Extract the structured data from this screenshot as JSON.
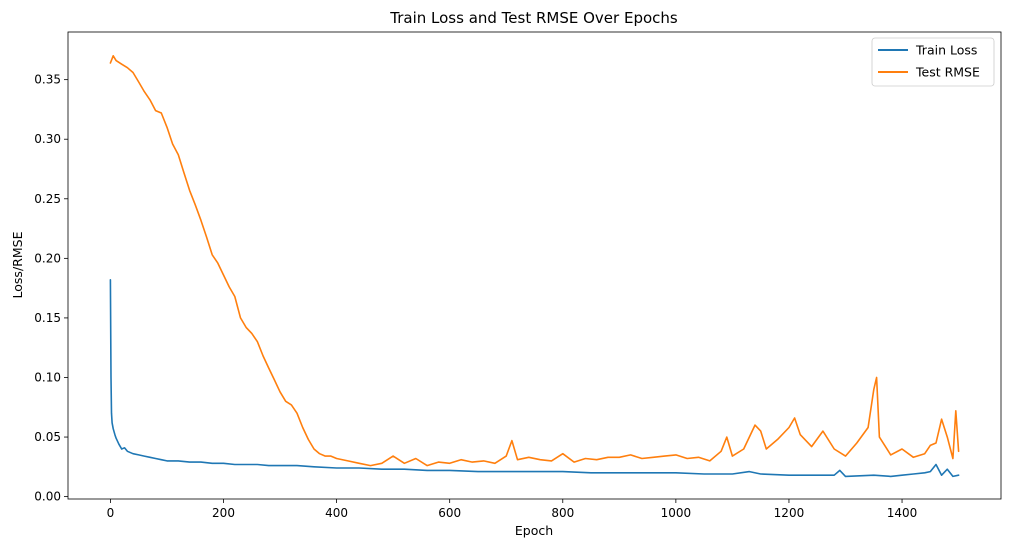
{
  "chart_data": {
    "type": "line",
    "title": "Train Loss and Test RMSE Over Epochs",
    "xlabel": "Epoch",
    "ylabel": "Loss/RMSE",
    "xlim": [
      -75,
      1575
    ],
    "ylim": [
      -0.002,
      0.39
    ],
    "x_ticks": [
      {
        "value": 0,
        "label": "0"
      },
      {
        "value": 200,
        "label": "200"
      },
      {
        "value": 400,
        "label": "400"
      },
      {
        "value": 600,
        "label": "600"
      },
      {
        "value": 800,
        "label": "800"
      },
      {
        "value": 1000,
        "label": "1000"
      },
      {
        "value": 1200,
        "label": "1200"
      },
      {
        "value": 1400,
        "label": "1400"
      }
    ],
    "y_ticks": [
      {
        "value": 0.0,
        "label": "0.00"
      },
      {
        "value": 0.05,
        "label": "0.05"
      },
      {
        "value": 0.1,
        "label": "0.10"
      },
      {
        "value": 0.15,
        "label": "0.15"
      },
      {
        "value": 0.2,
        "label": "0.20"
      },
      {
        "value": 0.25,
        "label": "0.25"
      },
      {
        "value": 0.3,
        "label": "0.30"
      },
      {
        "value": 0.35,
        "label": "0.35"
      }
    ],
    "grid": false,
    "legend_position": "top-right",
    "series": [
      {
        "name": "Train Loss",
        "color": "#1f77b4",
        "x": [
          0,
          1,
          2,
          3,
          5,
          8,
          10,
          15,
          20,
          25,
          30,
          40,
          50,
          60,
          70,
          80,
          90,
          100,
          120,
          140,
          160,
          180,
          200,
          220,
          240,
          260,
          280,
          300,
          330,
          360,
          400,
          440,
          480,
          520,
          560,
          600,
          650,
          700,
          750,
          800,
          850,
          900,
          950,
          1000,
          1050,
          1100,
          1130,
          1150,
          1200,
          1250,
          1280,
          1290,
          1300,
          1350,
          1380,
          1400,
          1420,
          1440,
          1450,
          1460,
          1470,
          1480,
          1490,
          1500
        ],
        "y": [
          0.182,
          0.1,
          0.07,
          0.062,
          0.057,
          0.052,
          0.049,
          0.044,
          0.04,
          0.041,
          0.038,
          0.036,
          0.035,
          0.034,
          0.033,
          0.032,
          0.031,
          0.03,
          0.03,
          0.029,
          0.029,
          0.028,
          0.028,
          0.027,
          0.027,
          0.027,
          0.026,
          0.026,
          0.026,
          0.025,
          0.024,
          0.024,
          0.023,
          0.023,
          0.022,
          0.022,
          0.021,
          0.021,
          0.021,
          0.021,
          0.02,
          0.02,
          0.02,
          0.02,
          0.019,
          0.019,
          0.021,
          0.019,
          0.018,
          0.018,
          0.018,
          0.022,
          0.017,
          0.018,
          0.017,
          0.018,
          0.019,
          0.02,
          0.021,
          0.027,
          0.018,
          0.023,
          0.017,
          0.018
        ]
      },
      {
        "name": "Test RMSE",
        "color": "#ff7f0e",
        "x": [
          0,
          5,
          10,
          20,
          30,
          40,
          50,
          60,
          70,
          80,
          90,
          100,
          110,
          120,
          130,
          140,
          150,
          160,
          170,
          180,
          190,
          200,
          210,
          220,
          230,
          240,
          250,
          260,
          270,
          280,
          290,
          300,
          310,
          320,
          330,
          340,
          350,
          360,
          370,
          380,
          390,
          400,
          420,
          440,
          460,
          480,
          500,
          520,
          540,
          560,
          580,
          600,
          620,
          640,
          660,
          680,
          700,
          710,
          720,
          740,
          760,
          780,
          800,
          820,
          840,
          860,
          880,
          900,
          920,
          940,
          960,
          980,
          1000,
          1020,
          1040,
          1060,
          1080,
          1090,
          1100,
          1120,
          1140,
          1150,
          1160,
          1180,
          1200,
          1210,
          1220,
          1240,
          1260,
          1280,
          1300,
          1320,
          1340,
          1350,
          1355,
          1360,
          1380,
          1400,
          1420,
          1440,
          1450,
          1460,
          1470,
          1480,
          1490,
          1495,
          1500
        ],
        "y": [
          0.364,
          0.37,
          0.366,
          0.363,
          0.36,
          0.356,
          0.348,
          0.34,
          0.333,
          0.324,
          0.322,
          0.31,
          0.296,
          0.287,
          0.272,
          0.257,
          0.245,
          0.232,
          0.218,
          0.203,
          0.196,
          0.186,
          0.176,
          0.168,
          0.15,
          0.142,
          0.137,
          0.13,
          0.118,
          0.108,
          0.098,
          0.088,
          0.08,
          0.077,
          0.07,
          0.058,
          0.048,
          0.04,
          0.036,
          0.034,
          0.034,
          0.032,
          0.03,
          0.028,
          0.026,
          0.028,
          0.034,
          0.028,
          0.032,
          0.026,
          0.029,
          0.028,
          0.031,
          0.029,
          0.03,
          0.028,
          0.034,
          0.047,
          0.031,
          0.033,
          0.031,
          0.03,
          0.036,
          0.029,
          0.032,
          0.031,
          0.033,
          0.033,
          0.035,
          0.032,
          0.033,
          0.034,
          0.035,
          0.032,
          0.033,
          0.03,
          0.038,
          0.05,
          0.034,
          0.04,
          0.06,
          0.055,
          0.04,
          0.048,
          0.058,
          0.066,
          0.052,
          0.042,
          0.055,
          0.04,
          0.034,
          0.045,
          0.058,
          0.09,
          0.1,
          0.05,
          0.035,
          0.04,
          0.033,
          0.036,
          0.043,
          0.045,
          0.065,
          0.05,
          0.032,
          0.072,
          0.038
        ]
      }
    ]
  }
}
